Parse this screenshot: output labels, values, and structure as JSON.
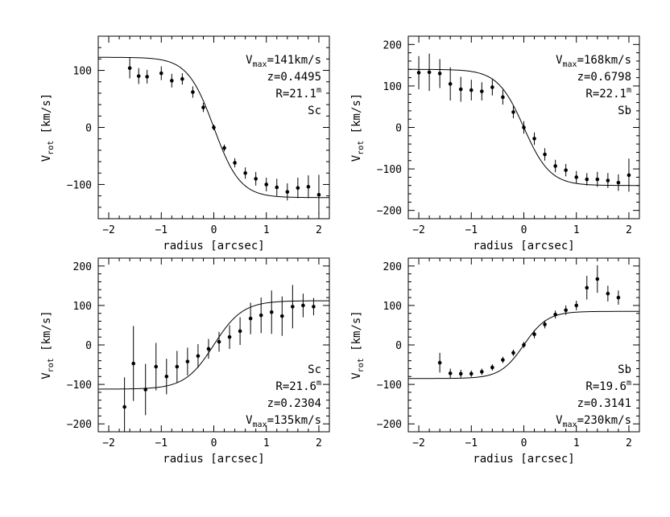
{
  "chart_data": [
    {
      "type": "scatter",
      "xlabel": "radius [arcsec]",
      "ylabel": "V",
      "ylabel_sub": "rot",
      "ylabel_unit": "[km/s]",
      "xlim": [
        -2.2,
        2.2
      ],
      "ylim": [
        -160,
        160
      ],
      "xticks": [
        -2,
        -1,
        0,
        1,
        2
      ],
      "yticks": [
        -100,
        0,
        100
      ],
      "annotations": [
        {
          "main": "V",
          "sub": "max",
          "rest": "=141km/s"
        },
        {
          "main": "z=0.4495"
        },
        {
          "main": "R=21.1",
          "sup": "m"
        },
        {
          "main": "Sc"
        }
      ],
      "model": {
        "vmax": 123,
        "center": 0,
        "scale": 0.5,
        "sign": -1
      },
      "points": [
        {
          "x": -1.6,
          "y": 104,
          "err": 18
        },
        {
          "x": -1.43,
          "y": 90,
          "err": 14
        },
        {
          "x": -1.27,
          "y": 89,
          "err": 12
        },
        {
          "x": -1.0,
          "y": 95,
          "err": 12
        },
        {
          "x": -0.8,
          "y": 82,
          "err": 12
        },
        {
          "x": -0.6,
          "y": 85,
          "err": 10
        },
        {
          "x": -0.4,
          "y": 62,
          "err": 10
        },
        {
          "x": -0.2,
          "y": 35,
          "err": 8
        },
        {
          "x": 0.0,
          "y": 0,
          "err": 5
        },
        {
          "x": 0.2,
          "y": -36,
          "err": 6
        },
        {
          "x": 0.4,
          "y": -62,
          "err": 8
        },
        {
          "x": 0.6,
          "y": -80,
          "err": 10
        },
        {
          "x": 0.8,
          "y": -90,
          "err": 12
        },
        {
          "x": 1.0,
          "y": -100,
          "err": 12
        },
        {
          "x": 1.2,
          "y": -105,
          "err": 15
        },
        {
          "x": 1.4,
          "y": -113,
          "err": 15
        },
        {
          "x": 1.6,
          "y": -106,
          "err": 18
        },
        {
          "x": 1.8,
          "y": -104,
          "err": 20
        },
        {
          "x": 2.0,
          "y": -118,
          "err": 35
        }
      ]
    },
    {
      "type": "scatter",
      "xlabel": "radius [arcsec]",
      "ylabel": "V",
      "ylabel_sub": "rot",
      "ylabel_unit": "[km/s]",
      "xlim": [
        -2.2,
        2.2
      ],
      "ylim": [
        -220,
        220
      ],
      "xticks": [
        -2,
        -1,
        0,
        1,
        2
      ],
      "yticks": [
        -200,
        -100,
        0,
        100,
        200
      ],
      "annotations": [
        {
          "main": "V",
          "sub": "max",
          "rest": "=168km/s"
        },
        {
          "main": "z=0.6798"
        },
        {
          "main": "R=22.1",
          "sup": "m"
        },
        {
          "main": "Sb"
        }
      ],
      "model": {
        "vmax": 140,
        "center": 0,
        "scale": 0.5,
        "sign": -1
      },
      "points": [
        {
          "x": -2.0,
          "y": 132,
          "err": 40
        },
        {
          "x": -1.8,
          "y": 133,
          "err": 45
        },
        {
          "x": -1.6,
          "y": 130,
          "err": 35
        },
        {
          "x": -1.4,
          "y": 105,
          "err": 40
        },
        {
          "x": -1.2,
          "y": 92,
          "err": 30
        },
        {
          "x": -1.0,
          "y": 90,
          "err": 25
        },
        {
          "x": -0.8,
          "y": 87,
          "err": 22
        },
        {
          "x": -0.6,
          "y": 97,
          "err": 20
        },
        {
          "x": -0.4,
          "y": 73,
          "err": 18
        },
        {
          "x": -0.2,
          "y": 37,
          "err": 15
        },
        {
          "x": 0.0,
          "y": 0,
          "err": 15
        },
        {
          "x": 0.2,
          "y": -27,
          "err": 15
        },
        {
          "x": 0.4,
          "y": -65,
          "err": 15
        },
        {
          "x": 0.6,
          "y": -93,
          "err": 15
        },
        {
          "x": 0.8,
          "y": -103,
          "err": 15
        },
        {
          "x": 1.0,
          "y": -120,
          "err": 15
        },
        {
          "x": 1.2,
          "y": -125,
          "err": 15
        },
        {
          "x": 1.4,
          "y": -125,
          "err": 18
        },
        {
          "x": 1.6,
          "y": -128,
          "err": 18
        },
        {
          "x": 1.8,
          "y": -133,
          "err": 20
        },
        {
          "x": 2.0,
          "y": -115,
          "err": 40
        }
      ]
    },
    {
      "type": "scatter",
      "xlabel": "radius [arcsec]",
      "ylabel": "V",
      "ylabel_sub": "rot",
      "ylabel_unit": "[km/s]",
      "xlim": [
        -2.2,
        2.2
      ],
      "ylim": [
        -220,
        220
      ],
      "xticks": [
        -2,
        -1,
        0,
        1,
        2
      ],
      "yticks": [
        -200,
        -100,
        0,
        100,
        200
      ],
      "annotations": [
        {
          "main": "Sc"
        },
        {
          "main": "R=21.6",
          "sup": "m"
        },
        {
          "main": "z=0.2304"
        },
        {
          "main": "V",
          "sub": "max",
          "rest": "=135km/s"
        }
      ],
      "model": {
        "vmax": 112,
        "center": 0,
        "scale": 0.55,
        "sign": 1
      },
      "points": [
        {
          "x": -1.7,
          "y": -157,
          "err": 75
        },
        {
          "x": -1.53,
          "y": -47,
          "err": 95
        },
        {
          "x": -1.3,
          "y": -113,
          "err": 65
        },
        {
          "x": -1.1,
          "y": -55,
          "err": 60
        },
        {
          "x": -0.9,
          "y": -80,
          "err": 45
        },
        {
          "x": -0.7,
          "y": -55,
          "err": 40
        },
        {
          "x": -0.5,
          "y": -42,
          "err": 35
        },
        {
          "x": -0.3,
          "y": -28,
          "err": 30
        },
        {
          "x": -0.1,
          "y": -10,
          "err": 25
        },
        {
          "x": 0.1,
          "y": 8,
          "err": 25
        },
        {
          "x": 0.3,
          "y": 20,
          "err": 30
        },
        {
          "x": 0.5,
          "y": 35,
          "err": 35
        },
        {
          "x": 0.7,
          "y": 67,
          "err": 40
        },
        {
          "x": 0.9,
          "y": 75,
          "err": 45
        },
        {
          "x": 1.1,
          "y": 83,
          "err": 55
        },
        {
          "x": 1.3,
          "y": 73,
          "err": 50
        },
        {
          "x": 1.5,
          "y": 97,
          "err": 55
        },
        {
          "x": 1.7,
          "y": 100,
          "err": 30
        },
        {
          "x": 1.9,
          "y": 97,
          "err": 22
        }
      ]
    },
    {
      "type": "scatter",
      "xlabel": "radius [arcsec]",
      "ylabel": "V",
      "ylabel_sub": "rot",
      "ylabel_unit": "[km/s]",
      "xlim": [
        -2.2,
        2.2
      ],
      "ylim": [
        -220,
        220
      ],
      "xticks": [
        -2,
        -1,
        0,
        1,
        2
      ],
      "yticks": [
        -200,
        -100,
        0,
        100,
        200
      ],
      "annotations": [
        {
          "main": "Sb"
        },
        {
          "main": "R=19.6",
          "sup": "m"
        },
        {
          "main": "z=0.3141"
        },
        {
          "main": "V",
          "sub": "max",
          "rest": "=230km/s"
        }
      ],
      "model": {
        "vmax": 85,
        "center": 0,
        "scale": 0.45,
        "sign": 1
      },
      "points": [
        {
          "x": -1.6,
          "y": -45,
          "err": 25
        },
        {
          "x": -1.4,
          "y": -72,
          "err": 12
        },
        {
          "x": -1.2,
          "y": -73,
          "err": 10
        },
        {
          "x": -1.0,
          "y": -73,
          "err": 8
        },
        {
          "x": -0.8,
          "y": -68,
          "err": 8
        },
        {
          "x": -0.6,
          "y": -57,
          "err": 8
        },
        {
          "x": -0.4,
          "y": -38,
          "err": 8
        },
        {
          "x": -0.2,
          "y": -20,
          "err": 8
        },
        {
          "x": 0.0,
          "y": 0,
          "err": 8
        },
        {
          "x": 0.2,
          "y": 27,
          "err": 10
        },
        {
          "x": 0.4,
          "y": 52,
          "err": 10
        },
        {
          "x": 0.6,
          "y": 77,
          "err": 10
        },
        {
          "x": 0.8,
          "y": 88,
          "err": 12
        },
        {
          "x": 1.0,
          "y": 100,
          "err": 12
        },
        {
          "x": 1.2,
          "y": 145,
          "err": 30
        },
        {
          "x": 1.4,
          "y": 167,
          "err": 35
        },
        {
          "x": 1.6,
          "y": 130,
          "err": 20
        },
        {
          "x": 1.8,
          "y": 120,
          "err": 18
        }
      ]
    }
  ]
}
